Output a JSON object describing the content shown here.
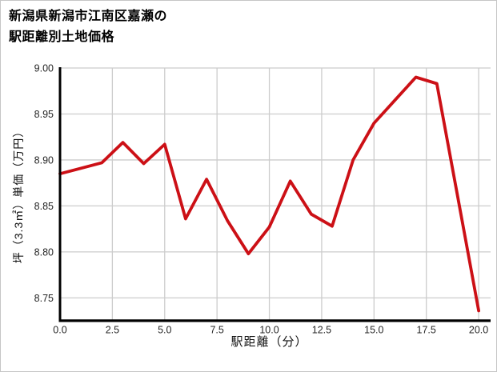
{
  "title": {
    "line1": "新潟県新潟市江南区嘉瀬の",
    "line2": "駅距離別土地価格"
  },
  "chart_data": {
    "type": "line",
    "title": "新潟県新潟市江南区嘉瀬の駅距離別土地価格",
    "xlabel": "駅距離（分）",
    "ylabel": "坪（3.3㎡）単価（万円）",
    "series": [
      {
        "name": "坪単価（万円）",
        "x": [
          0,
          1,
          2,
          3,
          4,
          5,
          6,
          7,
          8,
          9,
          10,
          11,
          12,
          13,
          14,
          15,
          16,
          17,
          18,
          19,
          20
        ],
        "values": [
          8.885,
          8.891,
          8.897,
          8.919,
          8.896,
          8.917,
          8.836,
          8.879,
          8.834,
          8.798,
          8.827,
          8.877,
          8.841,
          8.828,
          8.9,
          8.94,
          8.965,
          8.99,
          8.983,
          8.86,
          8.736
        ]
      }
    ],
    "xticks": [
      0,
      2.5,
      5,
      7.5,
      10,
      12.5,
      15,
      17.5,
      20
    ],
    "xtick_labels": [
      "0.0",
      "2.5",
      "5.0",
      "7.5",
      "10.0",
      "12.5",
      "15.0",
      "17.5",
      "20.0"
    ],
    "yticks": [
      8.75,
      8.8,
      8.85,
      8.9,
      8.95,
      9.0
    ],
    "ytick_labels": [
      "8.75",
      "8.80",
      "8.85",
      "8.90",
      "8.95",
      "9.00"
    ],
    "xlim": [
      0,
      20.57
    ],
    "ylim": [
      8.7255,
      9.0
    ],
    "grid": true,
    "legend": "none",
    "colors": {
      "line": "#cc1016",
      "grid": "#cccccc",
      "axis": "#000000",
      "tick_text": "#262626",
      "background": "#ffffff"
    }
  }
}
